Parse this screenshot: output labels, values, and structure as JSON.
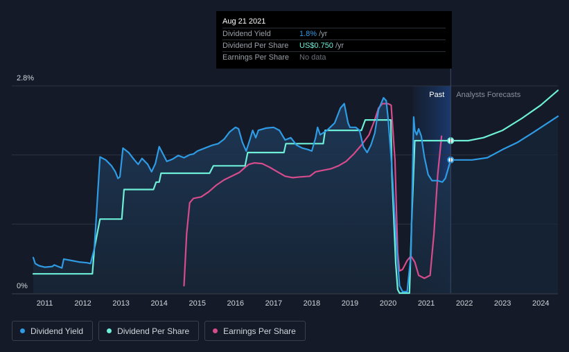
{
  "tooltip": {
    "date": "Aug 21 2021",
    "rows": [
      {
        "label": "Dividend Yield",
        "value": "1.8%",
        "unit": "/yr"
      },
      {
        "label": "Dividend Per Share",
        "value": "US$0.750",
        "unit": "/yr"
      },
      {
        "label": "Earnings Per Share",
        "value": "No data",
        "unit": ""
      }
    ]
  },
  "labels": {
    "past": "Past",
    "forecast": "Analysts Forecasts"
  },
  "legend": [
    {
      "label": "Dividend Yield",
      "color": "#2f9be4"
    },
    {
      "label": "Dividend Per Share",
      "color": "#6ef0d8"
    },
    {
      "label": "Earnings Per Share",
      "color": "#d64c8c"
    }
  ],
  "chart_data": {
    "type": "line",
    "y_axis_labels": [
      "2.8%",
      "0%"
    ],
    "ylim": [
      0,
      2.8
    ],
    "xlim": [
      2010.7,
      2024.45
    ],
    "x_ticks": [
      2011,
      2012,
      2013,
      2014,
      2015,
      2016,
      2017,
      2018,
      2019,
      2020,
      2021,
      2022,
      2023,
      2024
    ],
    "x_tick_labels": [
      "2011",
      "2012",
      "2013",
      "2014",
      "2015",
      "2016",
      "2017",
      "2018",
      "2019",
      "2020",
      "2021",
      "2022",
      "2023",
      "2024"
    ],
    "past_end_x": 2021.64,
    "past_band_start_x": 2020.65,
    "grid": true,
    "series": [
      {
        "name": "Dividend Yield",
        "color": "#2f9be4",
        "points": [
          [
            2010.7,
            0.48
          ],
          [
            2010.75,
            0.4
          ],
          [
            2010.85,
            0.37
          ],
          [
            2011.0,
            0.35
          ],
          [
            2011.2,
            0.36
          ],
          [
            2011.25,
            0.38
          ],
          [
            2011.35,
            0.36
          ],
          [
            2011.45,
            0.34
          ],
          [
            2011.5,
            0.46
          ],
          [
            2011.7,
            0.44
          ],
          [
            2011.9,
            0.42
          ],
          [
            2012.1,
            0.41
          ],
          [
            2012.2,
            0.4
          ],
          [
            2012.3,
            0.6
          ],
          [
            2012.45,
            1.84
          ],
          [
            2012.6,
            1.8
          ],
          [
            2012.75,
            1.72
          ],
          [
            2012.85,
            1.64
          ],
          [
            2012.92,
            1.55
          ],
          [
            2012.97,
            1.57
          ],
          [
            2013.05,
            1.96
          ],
          [
            2013.2,
            1.9
          ],
          [
            2013.35,
            1.8
          ],
          [
            2013.45,
            1.74
          ],
          [
            2013.55,
            1.82
          ],
          [
            2013.7,
            1.74
          ],
          [
            2013.8,
            1.64
          ],
          [
            2013.9,
            1.75
          ],
          [
            2014.0,
            1.98
          ],
          [
            2014.1,
            1.88
          ],
          [
            2014.2,
            1.78
          ],
          [
            2014.35,
            1.81
          ],
          [
            2014.5,
            1.86
          ],
          [
            2014.65,
            1.83
          ],
          [
            2014.8,
            1.87
          ],
          [
            2014.9,
            1.88
          ],
          [
            2015.0,
            1.92
          ],
          [
            2015.2,
            1.96
          ],
          [
            2015.4,
            2.0
          ],
          [
            2015.55,
            2.02
          ],
          [
            2015.7,
            2.08
          ],
          [
            2015.85,
            2.18
          ],
          [
            2016.0,
            2.24
          ],
          [
            2016.08,
            2.22
          ],
          [
            2016.18,
            2.04
          ],
          [
            2016.28,
            1.92
          ],
          [
            2016.38,
            2.08
          ],
          [
            2016.45,
            2.2
          ],
          [
            2016.53,
            2.1
          ],
          [
            2016.6,
            2.2
          ],
          [
            2016.8,
            2.23
          ],
          [
            2017.0,
            2.24
          ],
          [
            2017.15,
            2.2
          ],
          [
            2017.3,
            2.07
          ],
          [
            2017.45,
            2.1
          ],
          [
            2017.6,
            2.0
          ],
          [
            2017.75,
            1.96
          ],
          [
            2017.9,
            1.94
          ],
          [
            2018.0,
            1.92
          ],
          [
            2018.1,
            2.1
          ],
          [
            2018.15,
            2.24
          ],
          [
            2018.22,
            2.14
          ],
          [
            2018.4,
            2.2
          ],
          [
            2018.6,
            2.3
          ],
          [
            2018.75,
            2.5
          ],
          [
            2018.85,
            2.56
          ],
          [
            2018.95,
            2.3
          ],
          [
            2019.0,
            2.24
          ],
          [
            2019.15,
            2.24
          ],
          [
            2019.25,
            2.2
          ],
          [
            2019.35,
            1.98
          ],
          [
            2019.45,
            1.9
          ],
          [
            2019.55,
            2.0
          ],
          [
            2019.65,
            2.16
          ],
          [
            2019.75,
            2.48
          ],
          [
            2019.88,
            2.64
          ],
          [
            2019.95,
            2.6
          ],
          [
            2020.0,
            2.36
          ],
          [
            2020.1,
            1.7
          ],
          [
            2020.2,
            0.8
          ],
          [
            2020.3,
            0.1
          ],
          [
            2020.38,
            0.02
          ],
          [
            2020.5,
            0.02
          ],
          [
            2020.6,
            0.52
          ],
          [
            2020.67,
            2.38
          ],
          [
            2020.7,
            2.2
          ],
          [
            2020.75,
            2.14
          ],
          [
            2020.8,
            2.22
          ],
          [
            2020.87,
            2.12
          ],
          [
            2020.95,
            1.84
          ],
          [
            2021.05,
            1.6
          ],
          [
            2021.15,
            1.52
          ],
          [
            2021.3,
            1.52
          ],
          [
            2021.42,
            1.5
          ],
          [
            2021.5,
            1.55
          ],
          [
            2021.64,
            1.8
          ],
          [
            2021.9,
            1.8
          ],
          [
            2022.2,
            1.8
          ],
          [
            2022.6,
            1.83
          ],
          [
            2023.0,
            1.94
          ],
          [
            2023.4,
            2.04
          ],
          [
            2023.8,
            2.17
          ],
          [
            2024.45,
            2.39
          ]
        ]
      },
      {
        "name": "Dividend Per Share",
        "color": "#6ef0d8",
        "points": [
          [
            2010.7,
            0.26
          ],
          [
            2012.25,
            0.26
          ],
          [
            2012.3,
            0.6
          ],
          [
            2012.45,
            1.0
          ],
          [
            2013.02,
            1.0
          ],
          [
            2013.08,
            1.4
          ],
          [
            2013.85,
            1.4
          ],
          [
            2013.92,
            1.5
          ],
          [
            2014.0,
            1.5
          ],
          [
            2014.05,
            1.62
          ],
          [
            2015.32,
            1.62
          ],
          [
            2015.42,
            1.72
          ],
          [
            2016.25,
            1.72
          ],
          [
            2016.32,
            1.9
          ],
          [
            2017.27,
            1.9
          ],
          [
            2017.32,
            2.02
          ],
          [
            2018.3,
            2.02
          ],
          [
            2018.35,
            2.2
          ],
          [
            2019.3,
            2.2
          ],
          [
            2019.4,
            2.34
          ],
          [
            2020.07,
            2.34
          ],
          [
            2020.1,
            1.6
          ],
          [
            2020.2,
            0.4
          ],
          [
            2020.25,
            0.05
          ],
          [
            2020.3,
            0.0
          ],
          [
            2020.56,
            0.0
          ],
          [
            2020.62,
            1.0
          ],
          [
            2020.7,
            2.06
          ],
          [
            2020.8,
            2.06
          ],
          [
            2021.64,
            2.06
          ],
          [
            2022.1,
            2.06
          ],
          [
            2022.5,
            2.1
          ],
          [
            2023.0,
            2.2
          ],
          [
            2023.5,
            2.36
          ],
          [
            2024.0,
            2.54
          ],
          [
            2024.45,
            2.74
          ]
        ]
      },
      {
        "name": "Earnings Per Share",
        "color": "#d64c8c",
        "points": [
          [
            2014.65,
            0.1
          ],
          [
            2014.72,
            0.8
          ],
          [
            2014.8,
            1.22
          ],
          [
            2014.9,
            1.28
          ],
          [
            2015.1,
            1.3
          ],
          [
            2015.3,
            1.37
          ],
          [
            2015.5,
            1.46
          ],
          [
            2015.7,
            1.53
          ],
          [
            2015.9,
            1.58
          ],
          [
            2016.1,
            1.63
          ],
          [
            2016.25,
            1.7
          ],
          [
            2016.35,
            1.74
          ],
          [
            2016.5,
            1.76
          ],
          [
            2016.7,
            1.75
          ],
          [
            2016.9,
            1.7
          ],
          [
            2017.1,
            1.64
          ],
          [
            2017.3,
            1.58
          ],
          [
            2017.5,
            1.56
          ],
          [
            2017.7,
            1.57
          ],
          [
            2017.95,
            1.58
          ],
          [
            2018.1,
            1.64
          ],
          [
            2018.3,
            1.66
          ],
          [
            2018.5,
            1.68
          ],
          [
            2018.7,
            1.72
          ],
          [
            2018.9,
            1.78
          ],
          [
            2019.1,
            1.88
          ],
          [
            2019.3,
            2.0
          ],
          [
            2019.5,
            2.14
          ],
          [
            2019.65,
            2.34
          ],
          [
            2019.75,
            2.5
          ],
          [
            2019.85,
            2.56
          ],
          [
            2020.0,
            2.56
          ],
          [
            2020.08,
            2.54
          ],
          [
            2020.18,
            1.8
          ],
          [
            2020.25,
            0.55
          ],
          [
            2020.3,
            0.3
          ],
          [
            2020.38,
            0.32
          ],
          [
            2020.5,
            0.44
          ],
          [
            2020.6,
            0.5
          ],
          [
            2020.7,
            0.42
          ],
          [
            2020.8,
            0.24
          ],
          [
            2020.95,
            0.2
          ],
          [
            2021.1,
            0.24
          ],
          [
            2021.2,
            0.8
          ],
          [
            2021.3,
            1.6
          ],
          [
            2021.4,
            2.12
          ]
        ]
      }
    ]
  }
}
